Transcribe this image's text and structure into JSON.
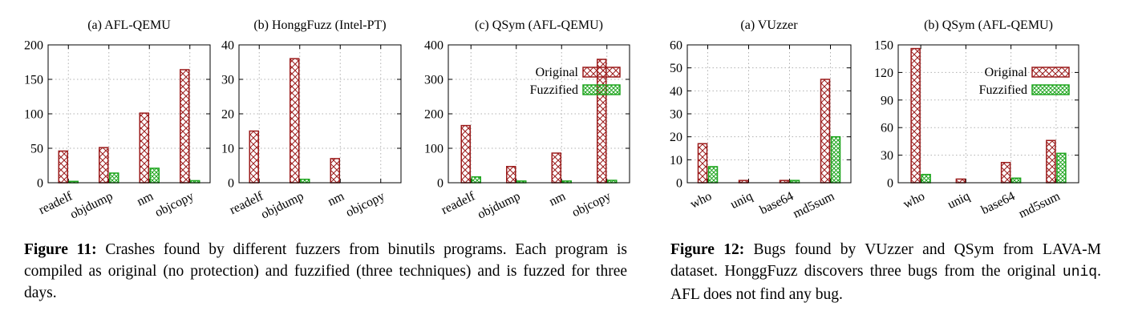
{
  "colors": {
    "original": "#9b1b1b",
    "fuzzified": "#1ea51e"
  },
  "series_names": [
    "Original",
    "Fuzzified"
  ],
  "chart_data": [
    {
      "type": "bar",
      "title": "(a) AFL-QEMU",
      "categories": [
        "readelf",
        "objdump",
        "nm",
        "objcopy"
      ],
      "ylim": [
        0,
        200
      ],
      "yticks": [
        0,
        50,
        100,
        150,
        200
      ],
      "series": [
        {
          "name": "Original",
          "values": [
            46,
            51,
            101,
            164
          ]
        },
        {
          "name": "Fuzzified",
          "values": [
            2,
            14,
            21,
            3
          ]
        }
      ],
      "legend": false,
      "grid": true
    },
    {
      "type": "bar",
      "title": "(b) HonggFuzz (Intel-PT)",
      "categories": [
        "readelf",
        "objdump",
        "nm",
        "objcopy"
      ],
      "ylim": [
        0,
        40
      ],
      "yticks": [
        0,
        10,
        20,
        30,
        40
      ],
      "series": [
        {
          "name": "Original",
          "values": [
            15,
            36,
            7,
            0
          ]
        },
        {
          "name": "Fuzzified",
          "values": [
            0,
            1,
            0,
            0
          ]
        }
      ],
      "legend": false,
      "grid": true
    },
    {
      "type": "bar",
      "title": "(c) QSym (AFL-QEMU)",
      "categories": [
        "readelf",
        "objdump",
        "nm",
        "objcopy"
      ],
      "ylim": [
        0,
        400
      ],
      "yticks": [
        0,
        100,
        200,
        300,
        400
      ],
      "series": [
        {
          "name": "Original",
          "values": [
            166,
            47,
            86,
            358
          ]
        },
        {
          "name": "Fuzzified",
          "values": [
            17,
            5,
            5,
            7
          ]
        }
      ],
      "legend": true,
      "legend_position": "top-right",
      "grid": true
    },
    {
      "type": "bar",
      "title": "(a) VUzzer",
      "categories": [
        "who",
        "uniq",
        "base64",
        "md5sum"
      ],
      "ylim": [
        0,
        60
      ],
      "yticks": [
        0,
        10,
        20,
        30,
        40,
        50,
        60
      ],
      "series": [
        {
          "name": "Original",
          "values": [
            17,
            1,
            1,
            45
          ]
        },
        {
          "name": "Fuzzified",
          "values": [
            7,
            0,
            1,
            20
          ]
        }
      ],
      "legend": false,
      "grid": true
    },
    {
      "type": "bar",
      "title": "(b) QSym (AFL-QEMU)",
      "categories": [
        "who",
        "uniq",
        "base64",
        "md5sum"
      ],
      "ylim": [
        0,
        150
      ],
      "yticks": [
        0,
        30,
        60,
        90,
        120,
        150
      ],
      "series": [
        {
          "name": "Original",
          "values": [
            146,
            4,
            22,
            46
          ]
        },
        {
          "name": "Fuzzified",
          "values": [
            9,
            0,
            5,
            32
          ]
        }
      ],
      "legend": true,
      "legend_position": "top-right",
      "grid": true
    }
  ],
  "captions": {
    "fig11": {
      "label": "Figure 11:",
      "text": "Crashes found by different fuzzers from binutils programs. Each program is compiled as original (no protection) and fuzzified (three techniques) and is fuzzed for three days."
    },
    "fig12": {
      "label": "Figure 12:",
      "text_a": "Bugs found by VUzzer and QSym from LAVA-M dataset. HonggFuzz discovers three bugs from the original ",
      "code": "uniq",
      "text_b": ". AFL does not find any bug."
    }
  }
}
